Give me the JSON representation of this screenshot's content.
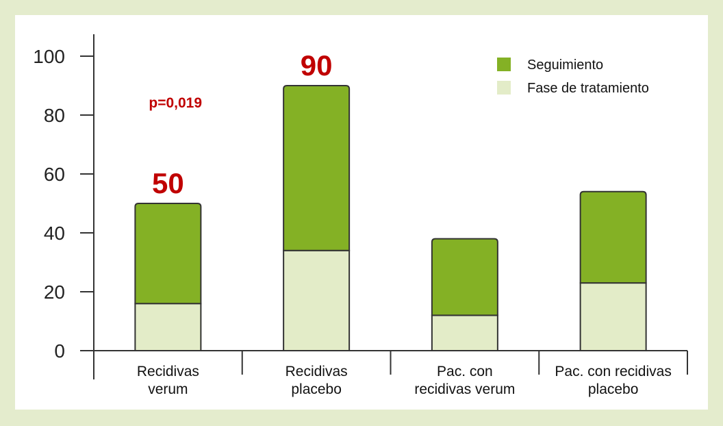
{
  "chart_data": {
    "type": "bar",
    "stacked": true,
    "categories": [
      [
        "Recidivas",
        "verum"
      ],
      [
        "Recidivas",
        "placebo"
      ],
      [
        "Pac. con",
        "recidivas verum"
      ],
      [
        "Pac. con recidivas",
        "placebo"
      ]
    ],
    "series": [
      {
        "name": "Fase de tratamiento",
        "values": [
          16,
          34,
          12,
          23
        ],
        "color": "#e3ecc8"
      },
      {
        "name": "Seguimiento",
        "values": [
          34,
          56,
          26,
          31
        ],
        "color": "#84b125"
      }
    ],
    "totals": [
      50,
      90,
      38,
      54
    ],
    "data_labels": [
      "50",
      "90",
      "",
      ""
    ],
    "annotation": "p=0,019",
    "yticks": [
      0,
      20,
      40,
      60,
      80,
      100
    ],
    "ylim": [
      0,
      100
    ],
    "legend_position": "top-right",
    "grid": false,
    "colors": {
      "label_red": "#c00000",
      "axis": "#333333",
      "background": "#e4eccd"
    }
  }
}
